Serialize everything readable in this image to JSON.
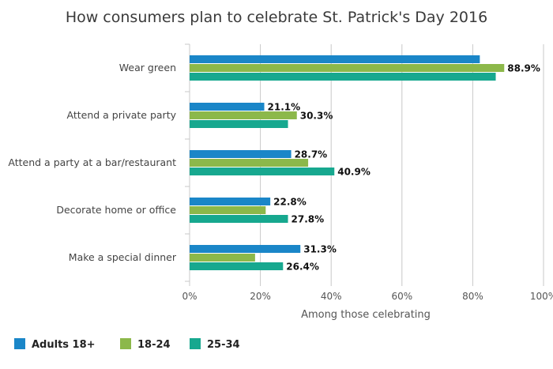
{
  "chart_data": {
    "type": "bar",
    "orientation": "horizontal",
    "title": "How consumers plan to celebrate St. Patrick's Day 2016",
    "xlabel": "Among those celebrating",
    "ylabel": "",
    "xlim": [
      0,
      100
    ],
    "x_ticks": [
      "0%",
      "20%",
      "40%",
      "60%",
      "80%",
      "100%"
    ],
    "categories": [
      "Wear green",
      "Attend a private party",
      "Attend a party at a bar/restaurant",
      "Decorate home or office",
      "Make a special dinner"
    ],
    "series": [
      {
        "name": "Adults 18+",
        "color": "#1a86c8",
        "values": [
          82.0,
          21.1,
          28.7,
          22.8,
          31.3
        ],
        "labels": [
          "",
          "21.1%",
          "28.7%",
          "22.8%",
          "31.3%"
        ]
      },
      {
        "name": "18-24",
        "color": "#8cb84a",
        "values": [
          88.9,
          30.3,
          33.5,
          21.5,
          18.5
        ],
        "labels": [
          "88.9%",
          "30.3%",
          "",
          "",
          ""
        ]
      },
      {
        "name": "25-34",
        "color": "#17a88f",
        "values": [
          86.5,
          27.8,
          40.9,
          27.8,
          26.4
        ],
        "labels": [
          "",
          "",
          "40.9%",
          "27.8%",
          "26.4%"
        ]
      }
    ],
    "grid": true,
    "legend": "bottom-left"
  }
}
